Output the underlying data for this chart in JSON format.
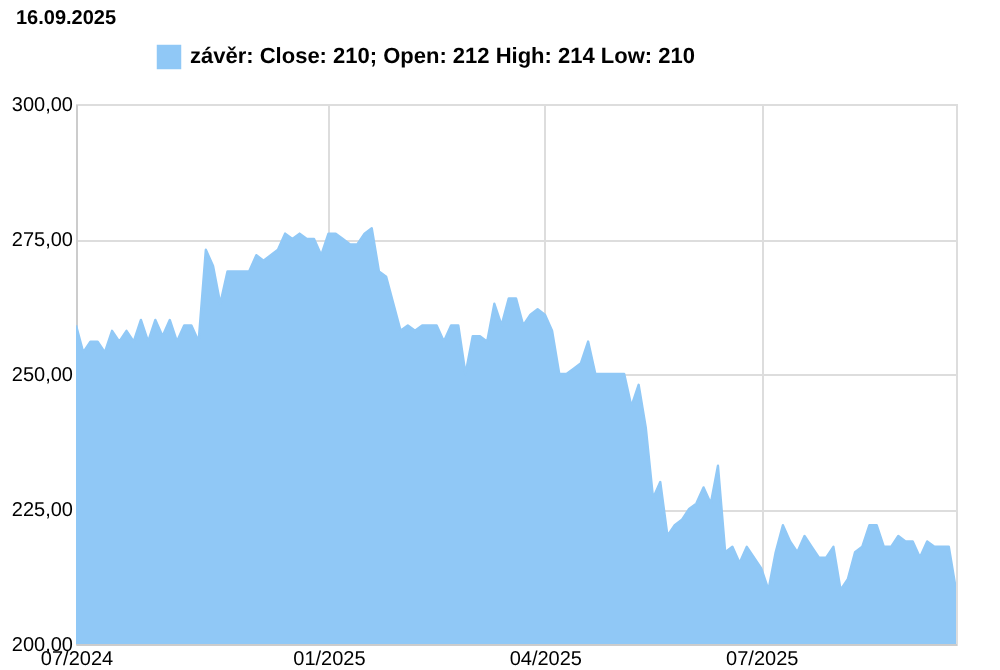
{
  "chart_data": {
    "type": "area",
    "title": "16.09.2025",
    "categories": [
      "07/2024",
      null,
      null,
      null,
      null,
      null,
      null,
      null,
      null,
      null,
      null,
      null,
      null,
      null,
      null,
      null,
      null,
      null,
      null,
      null,
      null,
      null,
      null,
      null,
      null,
      null,
      null,
      null,
      null,
      null,
      null,
      null,
      null,
      null,
      null,
      "01/2025",
      null,
      null,
      null,
      null,
      null,
      null,
      null,
      null,
      null,
      null,
      null,
      null,
      null,
      null,
      null,
      null,
      null,
      null,
      null,
      null,
      null,
      null,
      null,
      null,
      null,
      null,
      null,
      null,
      null,
      "04/2025",
      null,
      null,
      null,
      null,
      null,
      null,
      null,
      null,
      null,
      null,
      null,
      null,
      null,
      null,
      null,
      null,
      null,
      null,
      null,
      null,
      null,
      null,
      null,
      null,
      null,
      null,
      null,
      null,
      null,
      "07/2025",
      null,
      null,
      null,
      null,
      null,
      null,
      null,
      null,
      null,
      null,
      null,
      null,
      null,
      null,
      null,
      null,
      null,
      null,
      null,
      null,
      null,
      null,
      null,
      null,
      null,
      null,
      null
    ],
    "series": [
      {
        "name": "závěr: Close: 210; Open: 212 High: 214 Low: 210",
        "color": "#90c8f6",
        "values": [
          259,
          254,
          256,
          256,
          254,
          258,
          256,
          258,
          256,
          260,
          256,
          260,
          257,
          260,
          256,
          259,
          259,
          256,
          273,
          270,
          263,
          269,
          269,
          269,
          269,
          272,
          271,
          272,
          273,
          276,
          275,
          276,
          275,
          275,
          272,
          276,
          276,
          275,
          274,
          274,
          276,
          277,
          269,
          268,
          263,
          258,
          259,
          258,
          259,
          259,
          259,
          256,
          259,
          259,
          250,
          257,
          257,
          256,
          263,
          259,
          264,
          264,
          259,
          261,
          262,
          261,
          258,
          250,
          250,
          251,
          252,
          256,
          250,
          250,
          250,
          250,
          250,
          244,
          248,
          240,
          227,
          230,
          220,
          222,
          223,
          225,
          226,
          229,
          226,
          233,
          217,
          218,
          215,
          218,
          216,
          214,
          210,
          217,
          222,
          219,
          217,
          220,
          218,
          216,
          216,
          218,
          210,
          212,
          217,
          218,
          222,
          222,
          218,
          218,
          220,
          219,
          219,
          216,
          219,
          218,
          218,
          218,
          210
        ]
      }
    ],
    "ylim": [
      200,
      300
    ],
    "yticks": [
      {
        "value": 200,
        "label": "200,00"
      },
      {
        "value": 225,
        "label": "225,00"
      },
      {
        "value": 250,
        "label": "250,00"
      },
      {
        "value": 275,
        "label": "275,00"
      },
      {
        "value": 300,
        "label": "300,00"
      }
    ],
    "grid": true,
    "legend": "top left"
  }
}
